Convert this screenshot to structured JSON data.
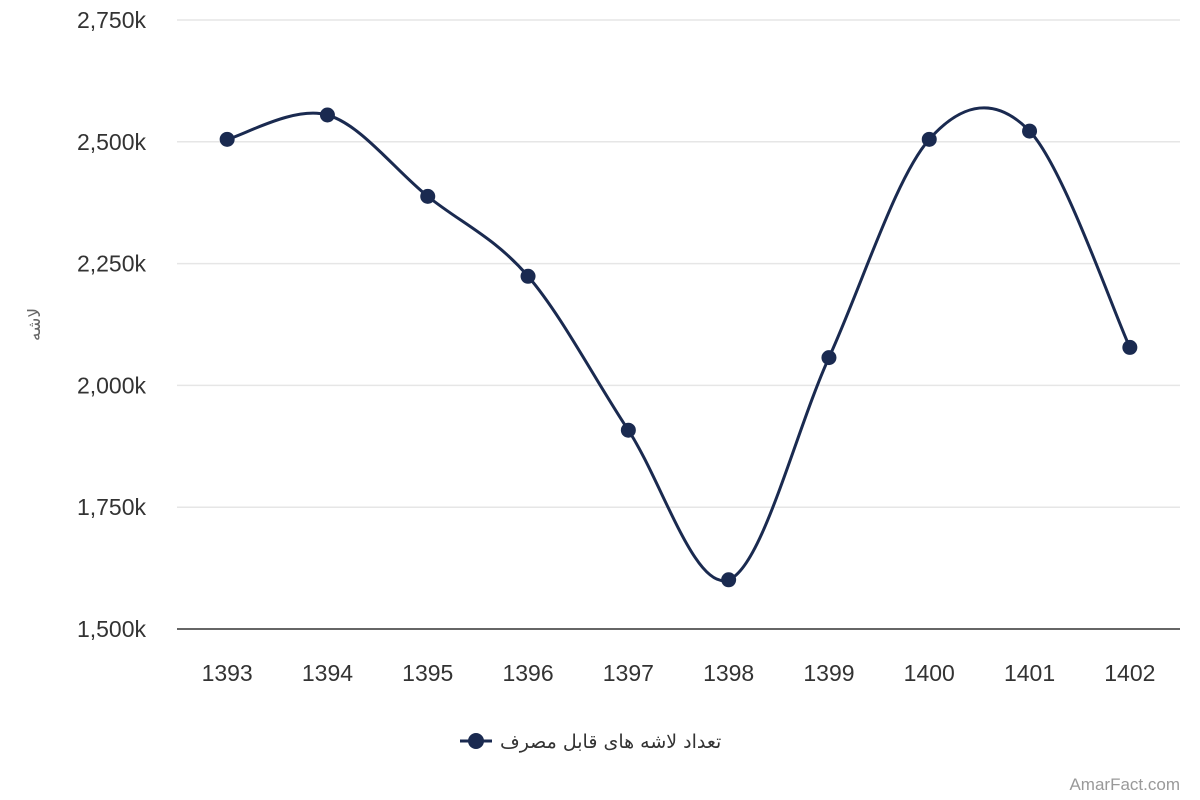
{
  "chart_data": {
    "type": "line",
    "smooth": true,
    "x": [
      "1393",
      "1394",
      "1395",
      "1396",
      "1397",
      "1398",
      "1399",
      "1400",
      "1401",
      "1402"
    ],
    "series": [
      {
        "name": "تعداد لاشه های قابل مصرف",
        "color": "#1a2a50",
        "values": [
          2505000,
          2555000,
          2388000,
          2224000,
          1908000,
          1601000,
          2057000,
          2505000,
          2522000,
          2078000
        ]
      }
    ],
    "ylabel": "لاشه",
    "xlabel": "",
    "ylim": [
      1500000,
      2750000
    ],
    "yticks": [
      1500000,
      1750000,
      2000000,
      2250000,
      2500000,
      2750000
    ],
    "ytick_labels": [
      "1,500k",
      "1,750k",
      "2,000k",
      "2,250k",
      "2,500k",
      "2,750k"
    ],
    "grid": true,
    "legend_position": "bottom-center",
    "credit": "AmarFact.com"
  }
}
